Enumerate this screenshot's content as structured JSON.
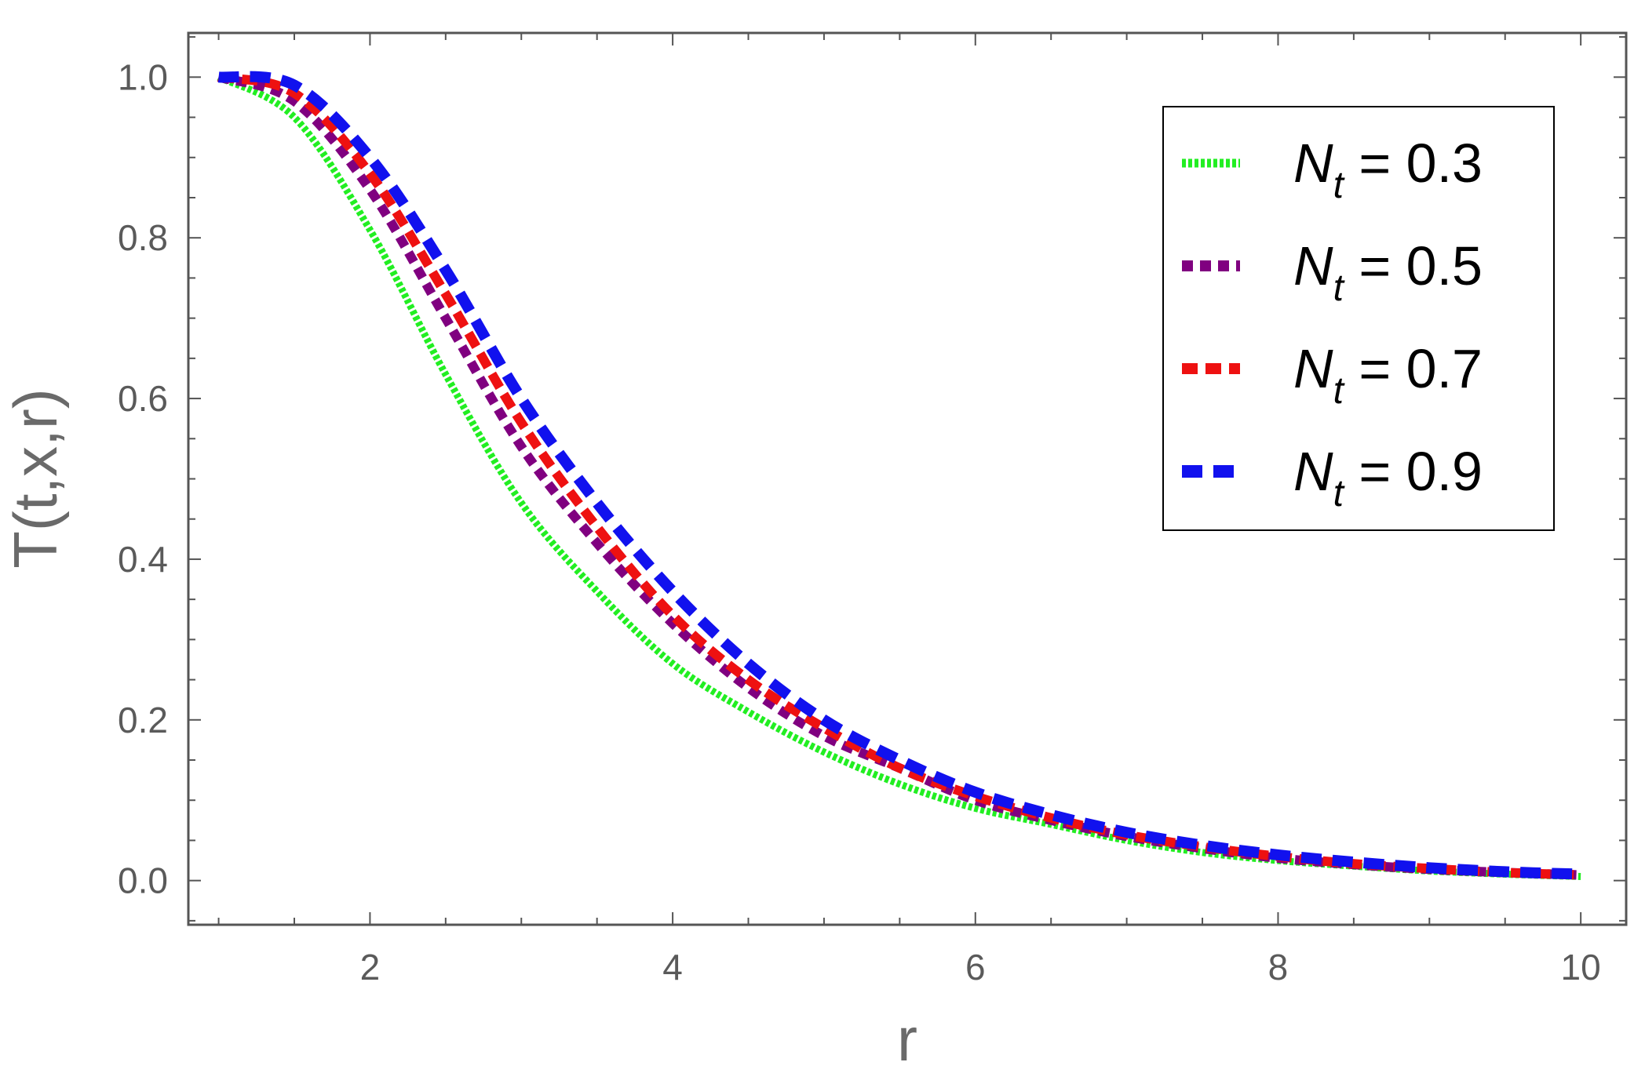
{
  "chart_data": {
    "type": "line",
    "title": "",
    "xlabel": "r",
    "ylabel": "T(t,x,r)",
    "xlim": [
      0.8,
      10.3
    ],
    "ylim": [
      -0.055,
      1.055
    ],
    "x_ticks": [
      2,
      4,
      6,
      8,
      10
    ],
    "x_tick_labels": [
      "2",
      "4",
      "6",
      "8",
      "10"
    ],
    "y_ticks": [
      0.0,
      0.2,
      0.4,
      0.6,
      0.8,
      1.0
    ],
    "y_tick_labels": [
      "0.0",
      "0.2",
      "0.4",
      "0.6",
      "0.8",
      "1.0"
    ],
    "grid": false,
    "legend_position": "top-right",
    "x": [
      1.0,
      1.5,
      2.0,
      2.5,
      3.0,
      3.5,
      4.0,
      4.5,
      5.0,
      5.5,
      6.0,
      6.5,
      7.0,
      7.5,
      8.0,
      8.5,
      9.0,
      9.5,
      10.0
    ],
    "series": [
      {
        "name": "N_t = 0.3",
        "label_var": "N",
        "label_sub": "t",
        "label_rest": " = 0.3",
        "color": "#22ee22",
        "line_style": "dotted-fine",
        "values": [
          1.0,
          0.95,
          0.81,
          0.63,
          0.47,
          0.36,
          0.27,
          0.21,
          0.16,
          0.12,
          0.09,
          0.07,
          0.05,
          0.035,
          0.025,
          0.018,
          0.012,
          0.008,
          0.005
        ]
      },
      {
        "name": "N_t = 0.5",
        "label_var": "N",
        "label_sub": "t",
        "label_rest": " = 0.5",
        "color": "#800080",
        "line_style": "dashed-short",
        "values": [
          1.0,
          0.97,
          0.86,
          0.7,
          0.54,
          0.42,
          0.32,
          0.24,
          0.18,
          0.14,
          0.1,
          0.075,
          0.055,
          0.04,
          0.028,
          0.02,
          0.014,
          0.01,
          0.007
        ]
      },
      {
        "name": "N_t = 0.7",
        "label_var": "N",
        "label_sub": "t",
        "label_rest": " = 0.7",
        "color": "#ee1111",
        "line_style": "dashed-medium",
        "values": [
          1.0,
          0.98,
          0.88,
          0.73,
          0.57,
          0.44,
          0.33,
          0.25,
          0.19,
          0.14,
          0.105,
          0.078,
          0.057,
          0.042,
          0.03,
          0.021,
          0.015,
          0.01,
          0.007
        ]
      },
      {
        "name": "N_t = 0.9",
        "label_var": "N",
        "label_sub": "t",
        "label_rest": " = 0.9",
        "color": "#1111ee",
        "line_style": "dashed-long",
        "values": [
          1.0,
          0.99,
          0.9,
          0.76,
          0.6,
          0.47,
          0.36,
          0.27,
          0.2,
          0.15,
          0.11,
          0.082,
          0.06,
          0.044,
          0.032,
          0.023,
          0.016,
          0.011,
          0.008
        ]
      }
    ]
  }
}
